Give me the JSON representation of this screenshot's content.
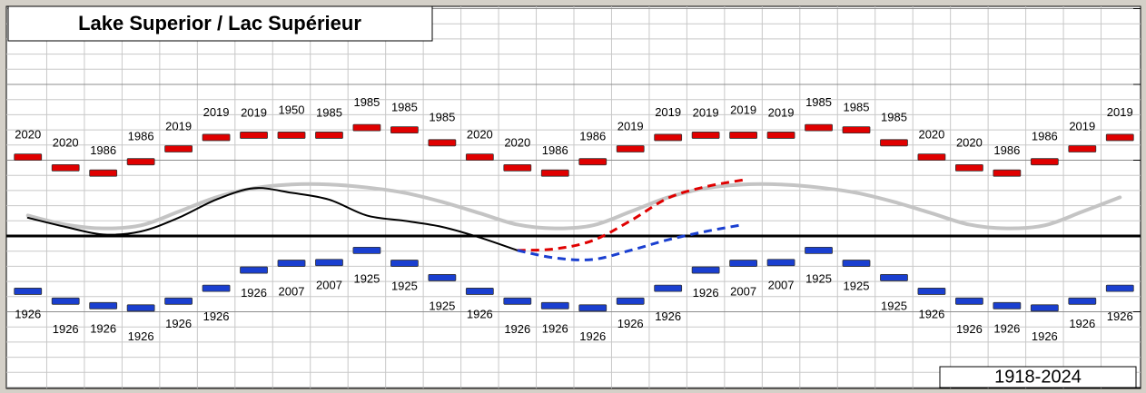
{
  "chart_data": {
    "type": "line",
    "title": "Lake Superior / Lac Supérieur",
    "period": "1918-2024",
    "categories": [
      null,
      null,
      null,
      null,
      null,
      null,
      null,
      null,
      null,
      null,
      null,
      null,
      null,
      null,
      null,
      null,
      null,
      null,
      null,
      null,
      null,
      null,
      null,
      null,
      null,
      null,
      null,
      null,
      null,
      null
    ],
    "ylim": [
      -20,
      30
    ],
    "yticks": [
      -20,
      -10,
      0,
      10,
      20,
      30
    ],
    "minor_yticks": [
      -18,
      -16,
      -14,
      -12,
      -8,
      -6,
      -4,
      -2,
      2,
      4,
      6,
      8,
      12,
      14,
      16,
      18,
      22,
      24,
      26,
      28
    ],
    "grid": true,
    "zero_line": true,
    "series": [
      {
        "style": "marker",
        "label_side": "above",
        "color": "#e00000",
        "values": [
          10.4,
          9.0,
          8.3,
          9.8,
          11.5,
          13.0,
          13.3,
          13.3,
          13.3,
          14.3,
          14.0,
          12.3,
          10.4,
          9.0,
          8.3,
          9.8,
          11.5,
          13.0,
          13.3,
          13.3,
          13.3,
          14.3,
          14.0,
          12.3,
          10.4,
          9.0,
          8.3,
          9.8,
          11.5,
          13.0
        ],
        "years": [
          "2020",
          "2020",
          "1986",
          "1986",
          "2019",
          "2019",
          "2019",
          "1950",
          "1985",
          "1985",
          "1985",
          "1985",
          "2020",
          "2020",
          "1986",
          "1986",
          "2019",
          "2019",
          "2019",
          "2019",
          "2019",
          "1985",
          "1985",
          "1985",
          "2020",
          "2020",
          "1986",
          "1986",
          "2019",
          "2019"
        ]
      },
      {
        "style": "marker",
        "label_side": "below",
        "color": "#1a3fd0",
        "values": [
          -7.3,
          -8.6,
          -9.2,
          -9.5,
          -8.6,
          -6.9,
          -4.5,
          -3.6,
          -3.5,
          -1.9,
          -3.6,
          -5.5,
          -7.3,
          -8.6,
          -9.2,
          -9.5,
          -8.6,
          -6.9,
          -4.5,
          -3.6,
          -3.5,
          -1.9,
          -3.6,
          -5.5,
          -7.3,
          -8.6,
          -9.2,
          -9.5,
          -8.6,
          -6.9
        ],
        "years": [
          "1926",
          "1926",
          "1926",
          "1926",
          "1926",
          "1926",
          "1926",
          "2007",
          "2007",
          "1925",
          "1925",
          "1925",
          "1926",
          "1926",
          "1926",
          "1926",
          "1926",
          "1926",
          "1926",
          "2007",
          "2007",
          "1925",
          "1925",
          "1925",
          "1926",
          "1926",
          "1926",
          "1926",
          "1926",
          "1926"
        ]
      },
      {
        "style": "line",
        "width": 4,
        "color": "#c4c4c4",
        "values": [
          2.7,
          1.5,
          1.0,
          1.4,
          3.2,
          5.1,
          6.3,
          6.8,
          6.8,
          6.4,
          5.7,
          4.5,
          3.0,
          1.5,
          1.0,
          1.4,
          3.2,
          5.1,
          6.3,
          6.8,
          6.8,
          6.4,
          5.7,
          4.5,
          3.0,
          1.5,
          1.0,
          1.4,
          3.2,
          5.1
        ]
      },
      {
        "style": "line",
        "width": 2,
        "color": "#000000",
        "values": [
          2.4,
          1.2,
          0.2,
          0.6,
          2.4,
          4.8,
          6.3,
          5.7,
          4.8,
          2.7,
          2.0,
          1.2,
          -0.2,
          -1.9,
          null,
          null,
          null,
          null,
          null,
          null,
          null,
          null,
          null,
          null,
          null,
          null,
          null,
          null,
          null,
          null
        ]
      },
      {
        "style": "dashed",
        "width": 3,
        "color": "#e00000",
        "values": [
          null,
          null,
          null,
          null,
          null,
          null,
          null,
          null,
          null,
          null,
          null,
          null,
          null,
          -1.9,
          -1.7,
          -0.6,
          2.0,
          5.0,
          6.5,
          7.4,
          null,
          null,
          null,
          null,
          null,
          null,
          null,
          null,
          null,
          null
        ]
      },
      {
        "style": "dashed",
        "width": 3,
        "color": "#1a3fd0",
        "values": [
          null,
          null,
          null,
          null,
          null,
          null,
          null,
          null,
          null,
          null,
          null,
          null,
          null,
          -1.9,
          -2.9,
          -3.1,
          -1.9,
          -0.5,
          0.6,
          1.5,
          null,
          null,
          null,
          null,
          null,
          null,
          null,
          null,
          null,
          null
        ]
      }
    ]
  }
}
